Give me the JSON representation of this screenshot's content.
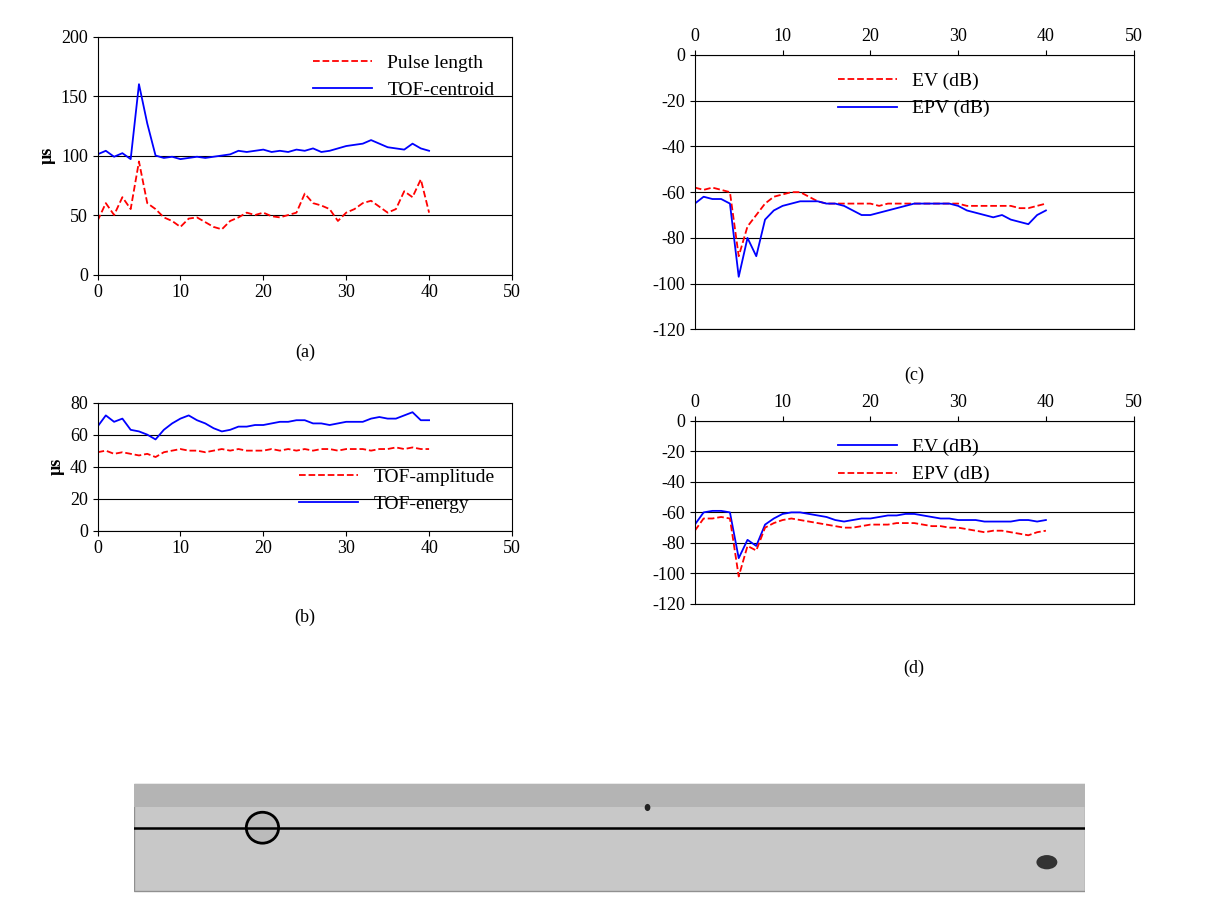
{
  "chart_data": [
    {
      "type": "line",
      "caption": "(a)",
      "y_label": "µs",
      "x": [
        0,
        1,
        2,
        3,
        4,
        5,
        6,
        7,
        8,
        9,
        10,
        11,
        12,
        13,
        14,
        15,
        16,
        17,
        18,
        19,
        20,
        21,
        22,
        23,
        24,
        25,
        26,
        27,
        28,
        29,
        30,
        31,
        32,
        33,
        34,
        35,
        36,
        37,
        38,
        39,
        40
      ],
      "series": [
        {
          "name": "Pulse length",
          "color": "#ff0000",
          "line_style": "dashed",
          "values": [
            45,
            60,
            50,
            65,
            55,
            95,
            60,
            55,
            48,
            45,
            40,
            47,
            48,
            44,
            40,
            38,
            45,
            48,
            52,
            50,
            52,
            49,
            48,
            50,
            52,
            68,
            60,
            58,
            55,
            45,
            52,
            55,
            60,
            62,
            57,
            52,
            55,
            70,
            65,
            80,
            52
          ]
        },
        {
          "name": "TOF-centroid",
          "color": "#0000ff",
          "line_style": "solid",
          "values": [
            101,
            104,
            99,
            102,
            97,
            160,
            127,
            100,
            98,
            99,
            97,
            98,
            99,
            98,
            99,
            100,
            101,
            104,
            103,
            104,
            105,
            103,
            104,
            103,
            105,
            104,
            106,
            103,
            104,
            106,
            108,
            109,
            110,
            113,
            110,
            107,
            106,
            105,
            110,
            106,
            104
          ]
        }
      ],
      "xlim": [
        0,
        50
      ],
      "xticks": [
        0,
        10,
        20,
        30,
        40,
        50
      ],
      "ylim": [
        0,
        200
      ],
      "yticks": [
        0,
        50,
        100,
        150,
        200
      ],
      "grid": true,
      "legend": "upper right"
    },
    {
      "type": "line",
      "caption": "(b)",
      "y_label": "µs",
      "x": [
        0,
        1,
        2,
        3,
        4,
        5,
        6,
        7,
        8,
        9,
        10,
        11,
        12,
        13,
        14,
        15,
        16,
        17,
        18,
        19,
        20,
        21,
        22,
        23,
        24,
        25,
        26,
        27,
        28,
        29,
        30,
        31,
        32,
        33,
        34,
        35,
        36,
        37,
        38,
        39,
        40
      ],
      "series": [
        {
          "name": "TOF-amplitude",
          "color": "#ff0000",
          "line_style": "dashed",
          "values": [
            49,
            50,
            48,
            49,
            48,
            47,
            48,
            46,
            49,
            50,
            51,
            50,
            50,
            49,
            50,
            51,
            50,
            51,
            50,
            50,
            50,
            51,
            50,
            51,
            50,
            51,
            50,
            51,
            51,
            50,
            51,
            51,
            51,
            50,
            51,
            51,
            52,
            51,
            52,
            51,
            51
          ]
        },
        {
          "name": "TOF-energy",
          "color": "#0000ff",
          "line_style": "solid",
          "values": [
            65,
            72,
            68,
            70,
            63,
            62,
            60,
            57,
            63,
            67,
            70,
            72,
            69,
            67,
            64,
            62,
            63,
            65,
            65,
            66,
            66,
            67,
            68,
            68,
            69,
            69,
            67,
            67,
            66,
            67,
            68,
            68,
            68,
            70,
            71,
            70,
            70,
            72,
            74,
            69,
            69
          ]
        }
      ],
      "xlim": [
        0,
        50
      ],
      "xticks": [
        0,
        10,
        20,
        30,
        40,
        50
      ],
      "ylim": [
        0,
        80
      ],
      "yticks": [
        0,
        20,
        40,
        60,
        80
      ],
      "grid": true,
      "legend": "lower right"
    },
    {
      "type": "line",
      "caption": "(c)",
      "x": [
        0,
        1,
        2,
        3,
        4,
        5,
        6,
        7,
        8,
        9,
        10,
        11,
        12,
        13,
        14,
        15,
        16,
        17,
        18,
        19,
        20,
        21,
        22,
        23,
        24,
        25,
        26,
        27,
        28,
        29,
        30,
        31,
        32,
        33,
        34,
        35,
        36,
        37,
        38,
        39,
        40
      ],
      "series": [
        {
          "name": "EV (dB)",
          "color": "#ff0000",
          "line_style": "dashed",
          "values": [
            -58,
            -59,
            -58,
            -59,
            -60,
            -88,
            -75,
            -70,
            -65,
            -62,
            -61,
            -60,
            -60,
            -62,
            -64,
            -65,
            -65,
            -65,
            -65,
            -65,
            -65,
            -66,
            -65,
            -65,
            -65,
            -65,
            -65,
            -65,
            -65,
            -65,
            -65,
            -66,
            -66,
            -66,
            -66,
            -66,
            -66,
            -67,
            -67,
            -66,
            -65
          ]
        },
        {
          "name": "EPV (dB)",
          "color": "#0000ff",
          "line_style": "solid",
          "values": [
            -65,
            -62,
            -63,
            -63,
            -65,
            -97,
            -80,
            -88,
            -72,
            -68,
            -66,
            -65,
            -64,
            -64,
            -64,
            -65,
            -65,
            -66,
            -68,
            -70,
            -70,
            -69,
            -68,
            -67,
            -66,
            -65,
            -65,
            -65,
            -65,
            -65,
            -66,
            -68,
            -69,
            -70,
            -71,
            -70,
            -72,
            -73,
            -74,
            -70,
            -68
          ]
        }
      ],
      "xlim": [
        0,
        50
      ],
      "xticks": [
        0,
        10,
        20,
        30,
        40,
        50
      ],
      "ylim": [
        -120,
        0
      ],
      "yticks": [
        -120,
        -100,
        -80,
        -60,
        -40,
        -20,
        0
      ],
      "grid": true,
      "legend": "upper center"
    },
    {
      "type": "line",
      "caption": "(d)",
      "x": [
        0,
        1,
        2,
        3,
        4,
        5,
        6,
        7,
        8,
        9,
        10,
        11,
        12,
        13,
        14,
        15,
        16,
        17,
        18,
        19,
        20,
        21,
        22,
        23,
        24,
        25,
        26,
        27,
        28,
        29,
        30,
        31,
        32,
        33,
        34,
        35,
        36,
        37,
        38,
        39,
        40
      ],
      "series": [
        {
          "name": "EV (dB)",
          "color": "#0000ff",
          "line_style": "solid",
          "values": [
            -68,
            -60,
            -59,
            -59,
            -60,
            -90,
            -78,
            -82,
            -68,
            -64,
            -61,
            -60,
            -60,
            -61,
            -62,
            -63,
            -65,
            -66,
            -65,
            -64,
            -64,
            -63,
            -62,
            -62,
            -61,
            -61,
            -62,
            -63,
            -64,
            -64,
            -65,
            -65,
            -65,
            -66,
            -66,
            -66,
            -66,
            -65,
            -65,
            -66,
            -65
          ]
        },
        {
          "name": "EPV (dB)",
          "color": "#ff0000",
          "line_style": "dashed",
          "values": [
            -72,
            -64,
            -64,
            -63,
            -64,
            -102,
            -82,
            -85,
            -70,
            -67,
            -65,
            -64,
            -65,
            -66,
            -67,
            -68,
            -69,
            -70,
            -70,
            -69,
            -68,
            -68,
            -68,
            -67,
            -67,
            -67,
            -68,
            -69,
            -69,
            -70,
            -70,
            -71,
            -72,
            -73,
            -72,
            -72,
            -73,
            -74,
            -75,
            -73,
            -72
          ]
        }
      ],
      "xlim": [
        0,
        50
      ],
      "xticks": [
        0,
        10,
        20,
        30,
        40,
        50
      ],
      "ylim": [
        -120,
        0
      ],
      "yticks": [
        -120,
        -100,
        -80,
        -60,
        -40,
        -20,
        0
      ],
      "grid": true,
      "legend": "upper center"
    }
  ]
}
